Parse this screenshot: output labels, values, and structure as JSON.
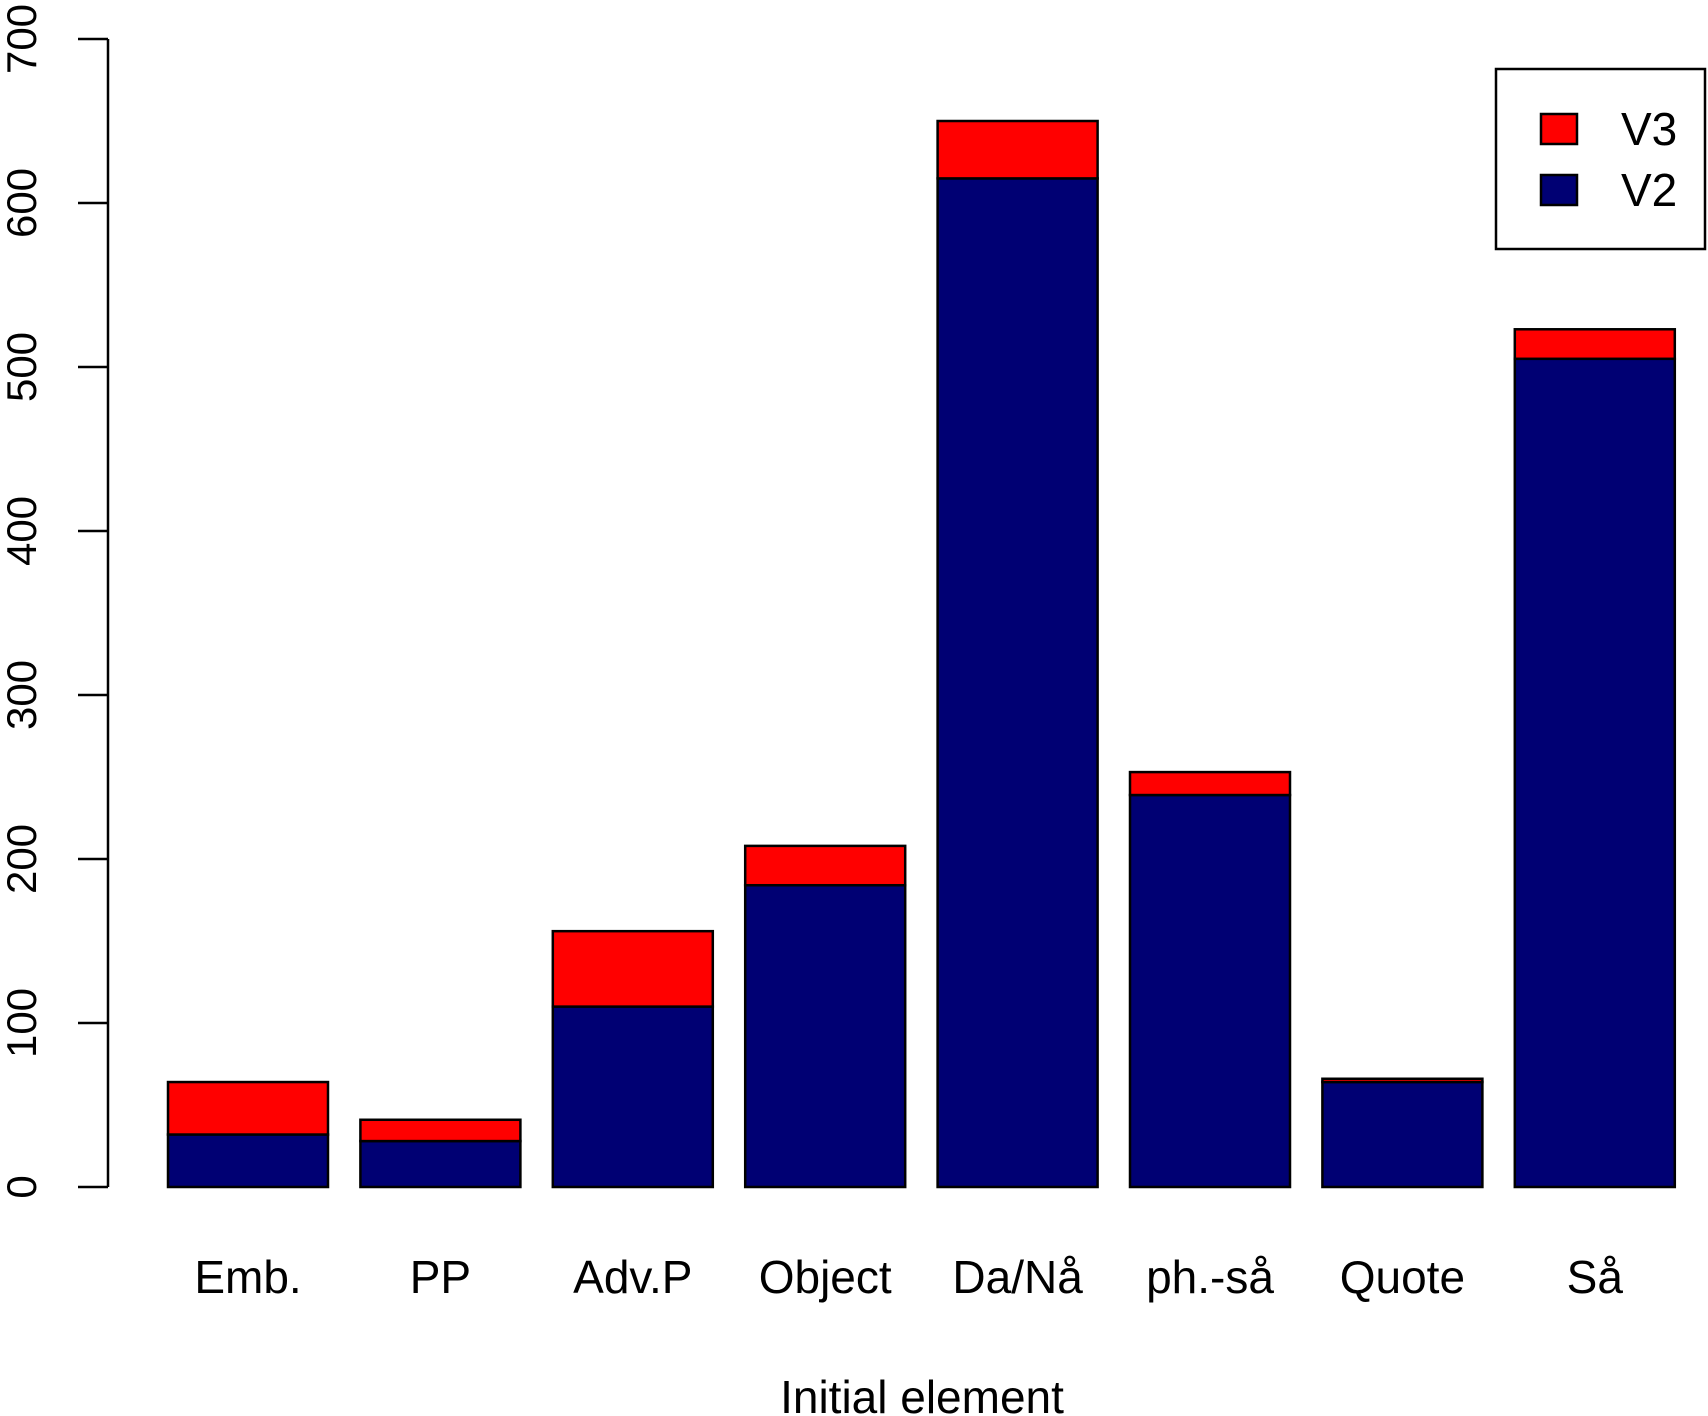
{
  "chart_data": {
    "type": "bar",
    "stacked": true,
    "categories": [
      "Emb.",
      "PP",
      "Adv.P",
      "Object",
      "Da/Nå",
      "ph.-så",
      "Quote",
      "Så"
    ],
    "series": [
      {
        "name": "V2",
        "color": "#000073",
        "values": [
          32,
          28,
          110,
          184,
          615,
          239,
          64,
          505
        ]
      },
      {
        "name": "V3",
        "color": "#ff0000",
        "values": [
          32,
          13,
          46,
          24,
          35,
          14,
          2,
          18
        ]
      }
    ],
    "legend_order": [
      "V3",
      "V2"
    ],
    "title": "",
    "xlabel": "Initial element",
    "ylabel": "",
    "ylim": [
      0,
      700
    ],
    "yticks": [
      0,
      100,
      200,
      300,
      400,
      500,
      600,
      700
    ],
    "grid": false,
    "legend_position": "top-right"
  }
}
